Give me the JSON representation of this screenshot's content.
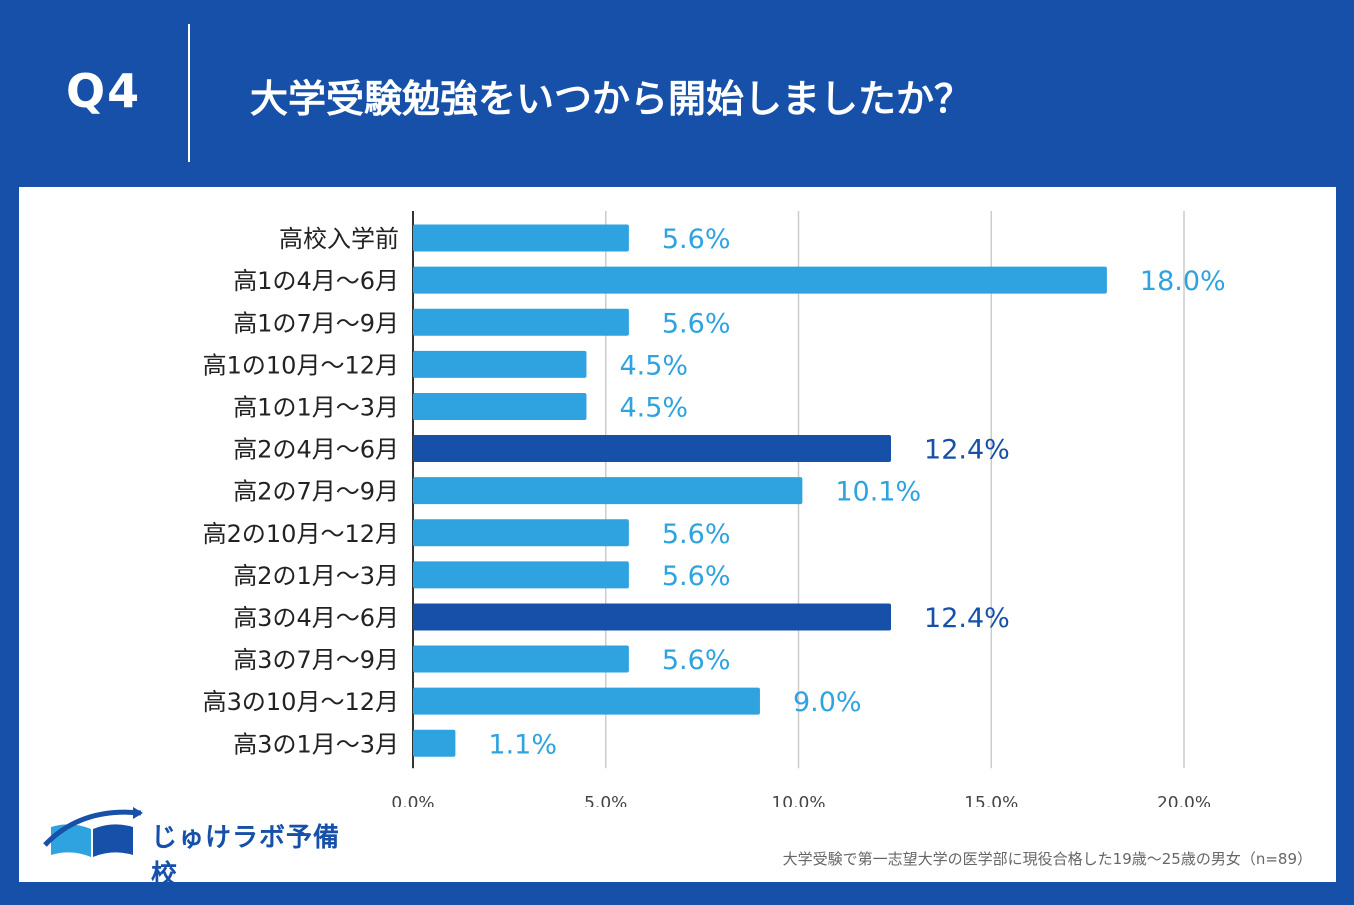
{
  "header": {
    "question_no": "Q4",
    "title": "大学受験勉強をいつから開始しましたか？"
  },
  "brand": {
    "name": "じゅけラボ予備校"
  },
  "footnote": "大学受験で第一志望大学の医学部に現役合格した19歳〜25歳の男女（n=89）",
  "colors": {
    "bar": "#2EA3E0",
    "highlight": "#1650A8",
    "background": "#1650A8"
  },
  "chart_data": {
    "type": "bar",
    "orientation": "horizontal",
    "title": "大学受験勉強をいつから開始しましたか？",
    "xlabel": "",
    "ylabel": "",
    "xlim": [
      0,
      20
    ],
    "ticks": [
      0,
      5,
      10,
      15,
      20
    ],
    "tick_labels": [
      "0.0%",
      "5.0%",
      "10.0%",
      "15.0%",
      "20.0%"
    ],
    "grid": true,
    "categories": [
      "高校入学前",
      "高1の4月〜6月",
      "高1の7月〜9月",
      "高1の10月〜12月",
      "高1の1月〜3月",
      "高2の4月〜6月",
      "高2の7月〜9月",
      "高2の10月〜12月",
      "高2の1月〜3月",
      "高3の4月〜6月",
      "高3の7月〜9月",
      "高3の10月〜12月",
      "高3の1月〜3月"
    ],
    "values": [
      5.6,
      18.0,
      5.6,
      4.5,
      4.5,
      12.4,
      10.1,
      5.6,
      5.6,
      12.4,
      5.6,
      9.0,
      1.1
    ],
    "value_labels": [
      "5.6%",
      "18.0%",
      "5.6%",
      "4.5%",
      "4.5%",
      "12.4%",
      "10.1%",
      "5.6%",
      "5.6%",
      "12.4%",
      "5.6%",
      "9.0%",
      "1.1%"
    ],
    "highlighted": [
      false,
      false,
      false,
      false,
      false,
      true,
      false,
      false,
      false,
      true,
      false,
      false,
      false
    ]
  }
}
